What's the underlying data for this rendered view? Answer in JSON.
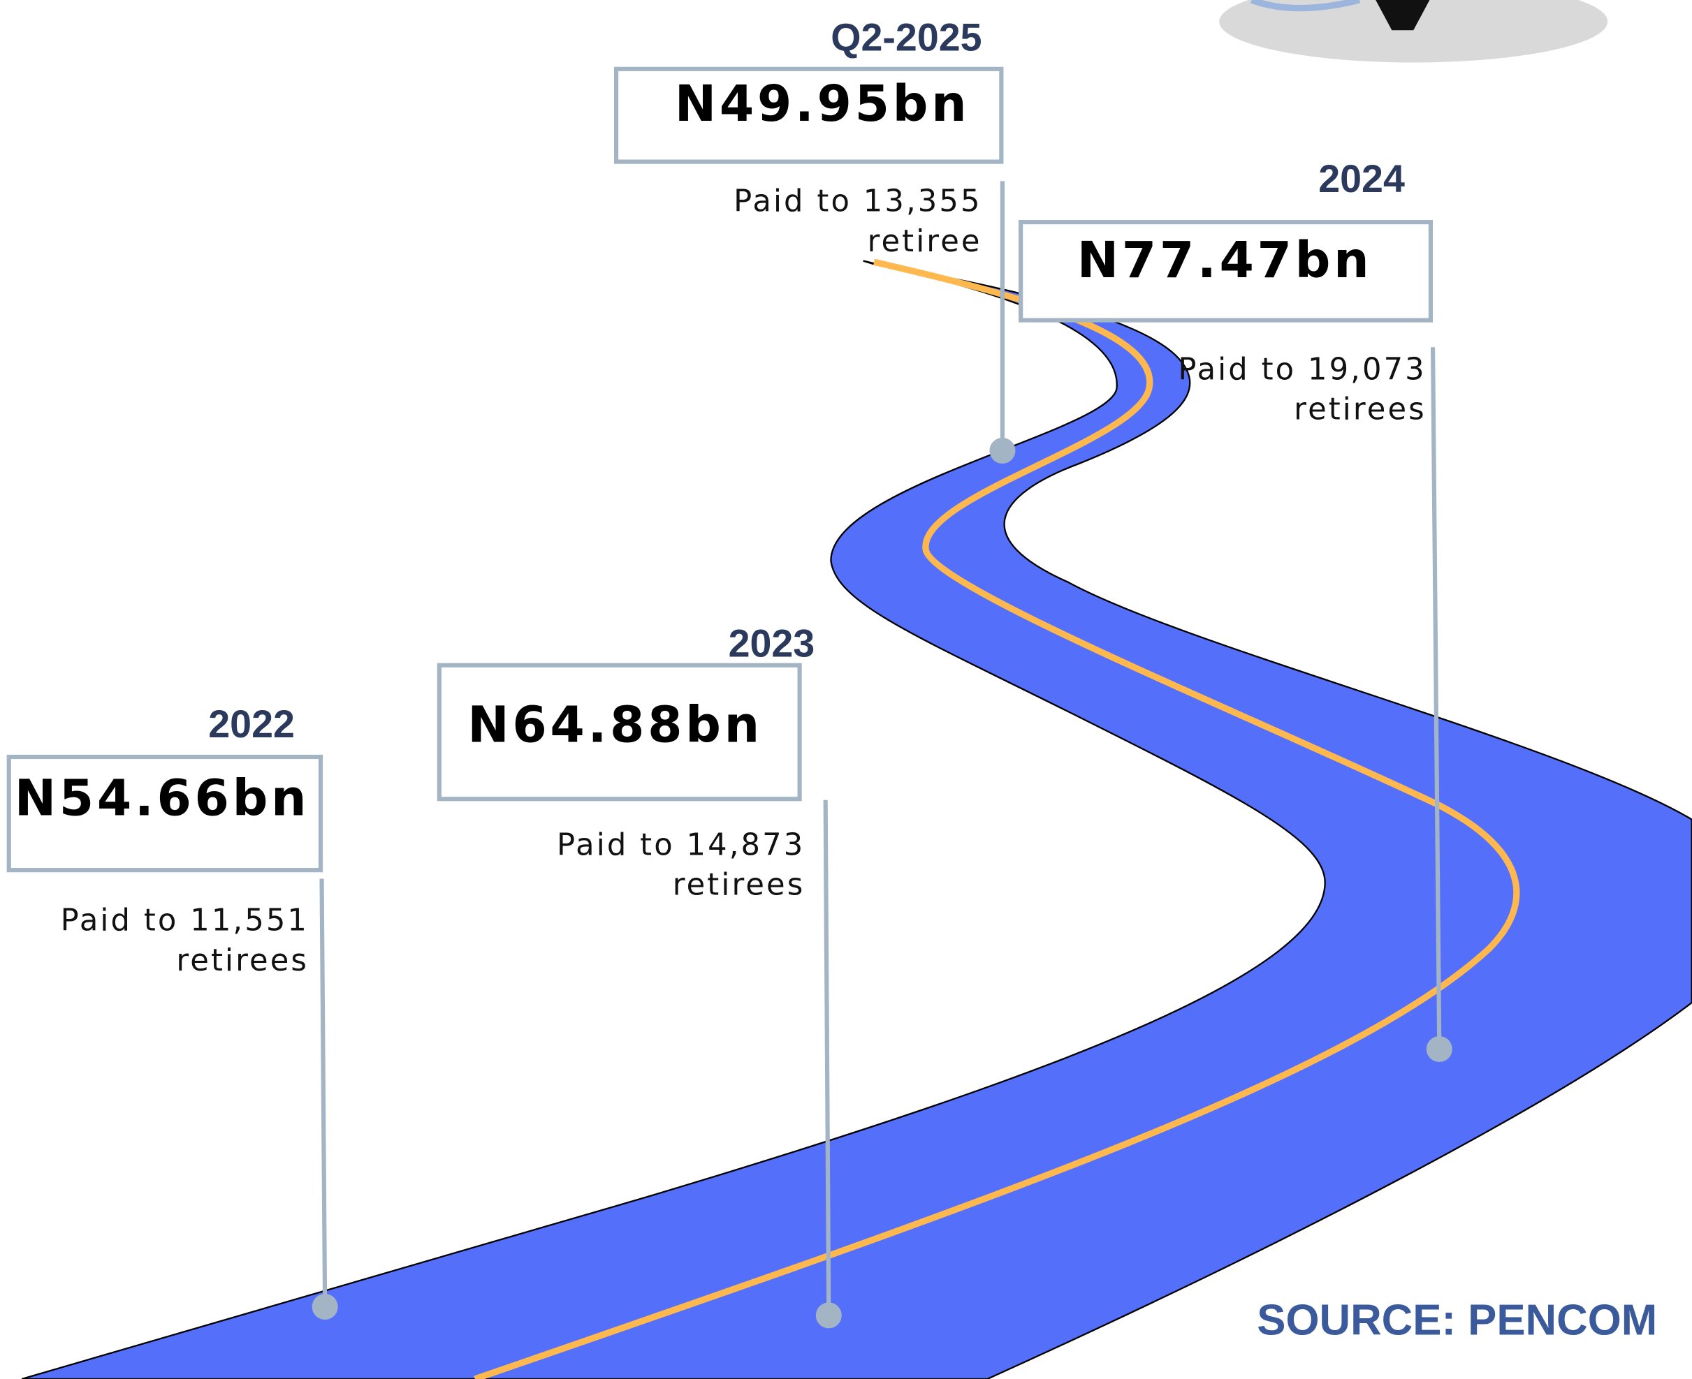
{
  "milestones": [
    {
      "year": "Q2-2025",
      "amount": "N49.95bn",
      "caption": [
        "Paid to 13,355",
        "retiree"
      ]
    },
    {
      "year": "2024",
      "amount": "N77.47bn",
      "caption": [
        "Paid to 19,073",
        "retirees"
      ]
    },
    {
      "year": "2023",
      "amount": "N64.88bn",
      "caption": [
        "Paid to 14,873",
        "retirees"
      ]
    },
    {
      "year": "2022",
      "amount": "N54.66bn",
      "caption": [
        "Paid to 11,551",
        "retirees"
      ]
    }
  ],
  "source": "SOURCE: PENCOM"
}
